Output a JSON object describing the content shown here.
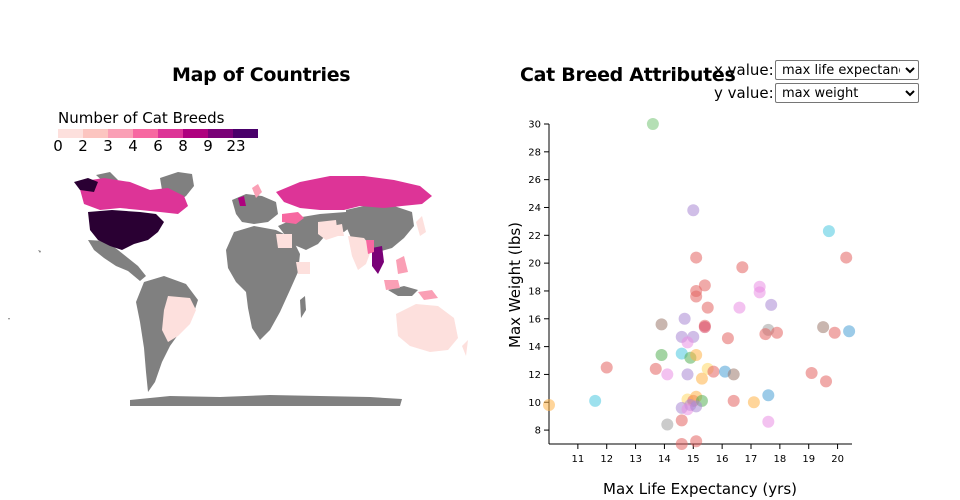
{
  "map": {
    "title": "Map of Countries",
    "legend": {
      "title": "Number of Cat Breeds",
      "labels": [
        "0",
        "2",
        "3",
        "4",
        "6",
        "8",
        "9",
        "23"
      ],
      "colors": [
        "#fde0dd",
        "#fcc5c0",
        "#fa9fb5",
        "#f768a1",
        "#dd3497",
        "#ae017e",
        "#7a0177",
        "#49006a",
        "#2a0033"
      ]
    },
    "no_data_color": "#808080"
  },
  "scatter": {
    "title": "Cat Breed Attributes",
    "x_control": {
      "label": "x value:",
      "selected": "max life expectancy"
    },
    "y_control": {
      "label": "y value:",
      "selected": "max weight"
    }
  },
  "chart_data": {
    "type": "scatter",
    "title": "Cat Breed Attributes",
    "xlabel": "Max Life Expectancy (yrs)",
    "ylabel": "Max Weight (lbs)",
    "xlim": [
      10,
      20.5
    ],
    "ylim": [
      7,
      30
    ],
    "x_ticks": [
      11,
      12,
      13,
      14,
      15,
      16,
      17,
      18,
      19,
      20
    ],
    "y_ticks": [
      8,
      10,
      12,
      14,
      16,
      18,
      20,
      22,
      24,
      26,
      28,
      30
    ],
    "grid": false,
    "points": [
      {
        "x": 13.6,
        "y": 30,
        "color": "#77c477"
      },
      {
        "x": 15,
        "y": 23.8,
        "color": "#a988d4"
      },
      {
        "x": 19.7,
        "y": 22.3,
        "color": "#4cc9e0"
      },
      {
        "x": 15.1,
        "y": 20.4,
        "color": "#e36462"
      },
      {
        "x": 16.7,
        "y": 19.7,
        "color": "#e36462"
      },
      {
        "x": 20.3,
        "y": 20.4,
        "color": "#e36462"
      },
      {
        "x": 15.4,
        "y": 18.4,
        "color": "#e36462"
      },
      {
        "x": 17.3,
        "y": 18.3,
        "color": "#e98fe3"
      },
      {
        "x": 15.1,
        "y": 18,
        "color": "#e36462"
      },
      {
        "x": 15.1,
        "y": 17.6,
        "color": "#e36462"
      },
      {
        "x": 17.3,
        "y": 17.9,
        "color": "#e98fe3"
      },
      {
        "x": 17.7,
        "y": 17,
        "color": "#a988d4"
      },
      {
        "x": 15.5,
        "y": 16.8,
        "color": "#e36462"
      },
      {
        "x": 16.6,
        "y": 16.8,
        "color": "#e98fe3"
      },
      {
        "x": 14.7,
        "y": 16,
        "color": "#a988d4"
      },
      {
        "x": 13.9,
        "y": 15.6,
        "color": "#9c7a6e"
      },
      {
        "x": 15.4,
        "y": 15.5,
        "color": "#e36462"
      },
      {
        "x": 15.4,
        "y": 15.4,
        "color": "#d94a6a"
      },
      {
        "x": 17.6,
        "y": 15.2,
        "color": "#a0a0a0"
      },
      {
        "x": 17.5,
        "y": 14.9,
        "color": "#e36462"
      },
      {
        "x": 17.9,
        "y": 15,
        "color": "#e36462"
      },
      {
        "x": 19.5,
        "y": 15.4,
        "color": "#9c7a6e"
      },
      {
        "x": 19.9,
        "y": 15,
        "color": "#e36462"
      },
      {
        "x": 20.4,
        "y": 15.1,
        "color": "#4ba0d6"
      },
      {
        "x": 14.6,
        "y": 14.7,
        "color": "#a988d4"
      },
      {
        "x": 15,
        "y": 14.7,
        "color": "#a988d4"
      },
      {
        "x": 14.8,
        "y": 14.3,
        "color": "#e98fe3"
      },
      {
        "x": 16.2,
        "y": 14.6,
        "color": "#e36462"
      },
      {
        "x": 13.9,
        "y": 13.4,
        "color": "#58b058"
      },
      {
        "x": 14.6,
        "y": 13.5,
        "color": "#4cc9e0"
      },
      {
        "x": 14.9,
        "y": 13.2,
        "color": "#58b058"
      },
      {
        "x": 15.1,
        "y": 13.4,
        "color": "#ffb347"
      },
      {
        "x": 12,
        "y": 12.5,
        "color": "#e36462"
      },
      {
        "x": 13.7,
        "y": 12.4,
        "color": "#e36462"
      },
      {
        "x": 14.1,
        "y": 12,
        "color": "#e98fe3"
      },
      {
        "x": 14.8,
        "y": 12,
        "color": "#a988d4"
      },
      {
        "x": 15.3,
        "y": 11.7,
        "color": "#ffb347"
      },
      {
        "x": 15.5,
        "y": 12.4,
        "color": "#ffd966"
      },
      {
        "x": 15.7,
        "y": 12.2,
        "color": "#e36462"
      },
      {
        "x": 16.1,
        "y": 12.2,
        "color": "#4ba0d6"
      },
      {
        "x": 16.4,
        "y": 12,
        "color": "#9c7a6e"
      },
      {
        "x": 19.1,
        "y": 12.1,
        "color": "#e36462"
      },
      {
        "x": 19.6,
        "y": 11.5,
        "color": "#e36462"
      },
      {
        "x": 10,
        "y": 9.8,
        "color": "#ffb347"
      },
      {
        "x": 11.6,
        "y": 10.1,
        "color": "#4cc9e0"
      },
      {
        "x": 14.8,
        "y": 10.2,
        "color": "#ffd966"
      },
      {
        "x": 15,
        "y": 10.1,
        "color": "#e36462"
      },
      {
        "x": 15.1,
        "y": 10.4,
        "color": "#ffb347"
      },
      {
        "x": 15.3,
        "y": 10.1,
        "color": "#58b058"
      },
      {
        "x": 14.9,
        "y": 9.8,
        "color": "#a988d4"
      },
      {
        "x": 14.6,
        "y": 9.6,
        "color": "#a988d4"
      },
      {
        "x": 14.8,
        "y": 9.5,
        "color": "#e98fe3"
      },
      {
        "x": 15.1,
        "y": 9.7,
        "color": "#a988d4"
      },
      {
        "x": 16.4,
        "y": 10.1,
        "color": "#e36462"
      },
      {
        "x": 17.1,
        "y": 10,
        "color": "#ffb347"
      },
      {
        "x": 17.6,
        "y": 10.5,
        "color": "#4ba0d6"
      },
      {
        "x": 14.6,
        "y": 8.7,
        "color": "#e36462"
      },
      {
        "x": 14.1,
        "y": 8.4,
        "color": "#a0a0a0"
      },
      {
        "x": 17.6,
        "y": 8.6,
        "color": "#e98fe3"
      },
      {
        "x": 14.6,
        "y": 7,
        "color": "#e36462"
      },
      {
        "x": 15.1,
        "y": 7.2,
        "color": "#e36462"
      }
    ]
  }
}
